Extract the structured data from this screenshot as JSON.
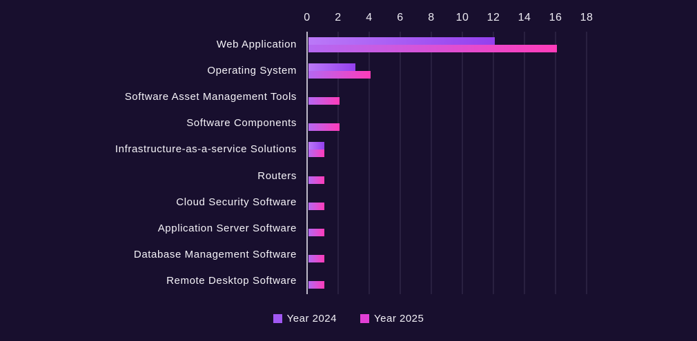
{
  "colors": {
    "background": "#180f2e",
    "gridline": "#3a3152",
    "axis_line": "#bdbac8",
    "text": "#f2f0f6"
  },
  "chart_data": {
    "type": "bar",
    "orientation": "horizontal",
    "title": "",
    "xlabel": "",
    "ylabel": "",
    "xlim": [
      0,
      18
    ],
    "x_ticks": [
      0,
      2,
      4,
      6,
      8,
      10,
      12,
      14,
      16,
      18
    ],
    "grid": true,
    "legend_position": "bottom",
    "categories": [
      "Web Application",
      "Operating System",
      "Software Asset Management Tools",
      "Software Components",
      "Infrastructure-as-a-service Solutions",
      "Routers",
      "Cloud Security Software",
      "Application Server Software",
      "Database Management Software",
      "Remote Desktop Software"
    ],
    "series": [
      {
        "name": "Year 2024",
        "legend_color": "#a158f3",
        "gradient_start": "#bb79f8",
        "gradient_end": "#9440ee",
        "values": [
          12,
          3,
          0,
          0,
          1,
          0,
          0,
          0,
          0,
          0
        ]
      },
      {
        "name": "Year 2025",
        "legend_color": "#e23fd6",
        "gradient_start": "#b468f2",
        "gradient_end": "#fe3cba",
        "values": [
          16,
          4,
          2,
          2,
          1,
          1,
          1,
          1,
          1,
          1
        ]
      }
    ]
  }
}
